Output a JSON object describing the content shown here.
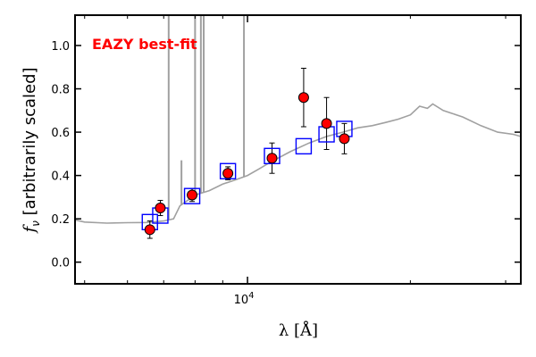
{
  "chart_data": {
    "type": "scatter",
    "annotation": "EAZY best-fit",
    "xlabel": "λ [Å]",
    "ylabel": "f_ν [arbitrarily scaled]",
    "x_scale": "log",
    "xlim": [
      4800,
      32000
    ],
    "ylim": [
      -0.1,
      1.14
    ],
    "x_ticks": [
      {
        "value": 10000,
        "base": "10",
        "exponent": "4"
      }
    ],
    "y_ticks": [
      {
        "value": 0.0,
        "label": "0.0"
      },
      {
        "value": 0.2,
        "label": "0.2"
      },
      {
        "value": 0.4,
        "label": "0.4"
      },
      {
        "value": 0.6,
        "label": "0.6"
      },
      {
        "value": 0.8,
        "label": "0.8"
      },
      {
        "value": 1.0,
        "label": "1.0"
      }
    ],
    "colors": {
      "model": "#a0a0a0",
      "observed_fill": "#ff0000",
      "observed_edge": "#000000",
      "model_photometry": "#0000ff",
      "annotation": "#ff0000"
    },
    "series": [
      {
        "points": [
          {
            "x": 6600,
            "y": 0.15,
            "yerr": 0.04
          },
          {
            "x": 6900,
            "y": 0.25,
            "yerr": 0.035
          },
          {
            "x": 7900,
            "y": 0.31,
            "yerr": 0.03
          },
          {
            "x": 9200,
            "y": 0.41,
            "yerr": 0.03
          },
          {
            "x": 11100,
            "y": 0.48,
            "yerr": 0.07
          },
          {
            "x": 12700,
            "y": 0.76,
            "yerr": 0.135
          },
          {
            "x": 14000,
            "y": 0.64,
            "yerr": 0.12
          },
          {
            "x": 15100,
            "y": 0.57,
            "yerr": 0.07
          }
        ]
      },
      {
        "points": [
          {
            "x": 6600,
            "y": 0.185
          },
          {
            "x": 6900,
            "y": 0.215
          },
          {
            "x": 7900,
            "y": 0.305
          },
          {
            "x": 9200,
            "y": 0.42
          },
          {
            "x": 11100,
            "y": 0.49
          },
          {
            "x": 12700,
            "y": 0.535
          },
          {
            "x": 14000,
            "y": 0.59
          },
          {
            "x": 15100,
            "y": 0.615
          }
        ]
      },
      {
        "line": [
          [
            4800,
            0.195
          ],
          [
            5000,
            0.185
          ],
          [
            5500,
            0.18
          ],
          [
            6000,
            0.182
          ],
          [
            6500,
            0.183
          ],
          [
            7000,
            0.19
          ],
          [
            7300,
            0.2
          ],
          [
            7500,
            0.26
          ],
          [
            7800,
            0.29
          ],
          [
            8000,
            0.31
          ],
          [
            8500,
            0.33
          ],
          [
            9000,
            0.36
          ],
          [
            9500,
            0.38
          ],
          [
            10000,
            0.4
          ],
          [
            10500,
            0.43
          ],
          [
            11000,
            0.46
          ],
          [
            12000,
            0.51
          ],
          [
            13000,
            0.55
          ],
          [
            14000,
            0.58
          ],
          [
            15000,
            0.6
          ],
          [
            16000,
            0.62
          ],
          [
            17000,
            0.63
          ],
          [
            18000,
            0.645
          ],
          [
            19000,
            0.66
          ],
          [
            20000,
            0.68
          ],
          [
            20800,
            0.72
          ],
          [
            21500,
            0.71
          ],
          [
            22000,
            0.73
          ],
          [
            23000,
            0.7
          ],
          [
            25000,
            0.67
          ],
          [
            27000,
            0.63
          ],
          [
            29000,
            0.6
          ],
          [
            31000,
            0.59
          ],
          [
            32000,
            0.58
          ]
        ],
        "emission_lines": [
          {
            "x": 7150,
            "peak": 1.14
          },
          {
            "x": 7550,
            "peak": 0.47
          },
          {
            "x": 8000,
            "peak": 1.14
          },
          {
            "x": 8200,
            "peak": 1.14
          },
          {
            "x": 8300,
            "peak": 1.14
          },
          {
            "x": 9850,
            "peak": 1.14
          }
        ]
      }
    ]
  }
}
